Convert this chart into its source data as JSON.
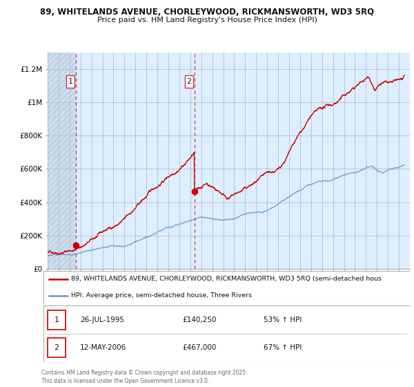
{
  "title_line1": "89, WHITELANDS AVENUE, CHORLEYWOOD, RICKMANSWORTH, WD3 5RQ",
  "title_line2": "Price paid vs. HM Land Registry's House Price Index (HPI)",
  "legend_line1": "89, WHITELANDS AVENUE, CHORLEYWOOD, RICKMANSWORTH, WD3 5RQ (semi-detached hous",
  "legend_line2": "HPI: Average price, semi-detached house, Three Rivers",
  "sale1_date": "26-JUL-1995",
  "sale1_price": "£140,250",
  "sale1_hpi": "53% ↑ HPI",
  "sale2_date": "12-MAY-2006",
  "sale2_price": "£467,000",
  "sale2_hpi": "67% ↑ HPI",
  "footer": "Contains HM Land Registry data © Crown copyright and database right 2025.\nThis data is licensed under the Open Government Licence v3.0.",
  "property_color": "#cc0000",
  "hpi_color": "#6699cc",
  "vline_color": "#cc4444",
  "chart_bg": "#ddeeff",
  "hatch_facecolor": "#ccddee",
  "ylim": [
    0,
    1300000
  ],
  "yticks": [
    0,
    200000,
    400000,
    600000,
    800000,
    1000000,
    1200000
  ],
  "ytick_labels": [
    "£0",
    "£200K",
    "£400K",
    "£600K",
    "£800K",
    "£1M",
    "£1.2M"
  ],
  "year_start": 1993,
  "year_end": 2026,
  "sale1_year": 1995.57,
  "sale2_year": 2006.37,
  "sale1_price_val": 140250,
  "sale2_price_val": 467000
}
